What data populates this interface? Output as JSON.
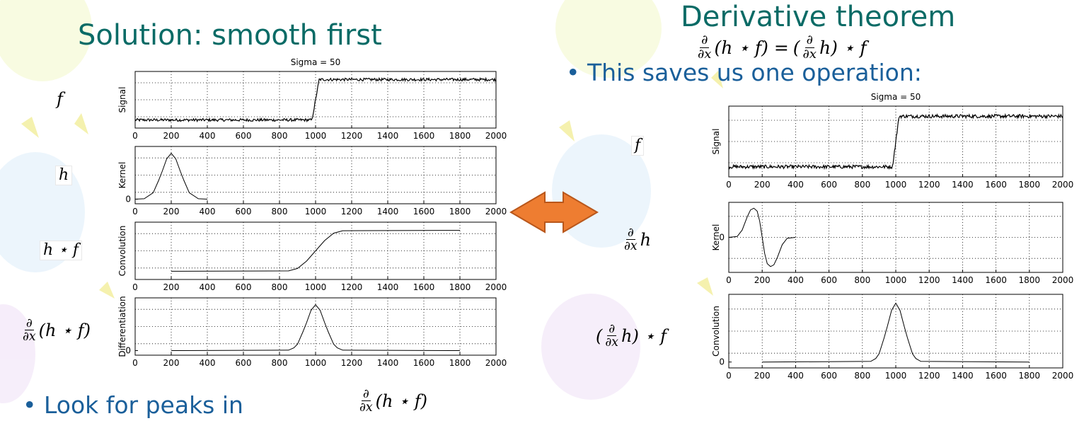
{
  "slide": {
    "left_title": "Solution:  smooth first",
    "right_title": "Derivative theorem",
    "theorem_lhs": "(h ⋆ f) =",
    "theorem_rhs": "h) ⋆ f",
    "deriv_num": "∂",
    "deriv_den": "∂x",
    "bullet_right": "• This saves us one operation:",
    "bullet_left": "• Look for peaks in",
    "left_labels": {
      "f": "f",
      "h": "h",
      "hf": "h ⋆ f",
      "dhf_tail": "(h ⋆ f)"
    },
    "right_labels": {
      "f": "f",
      "dh_tail": "h",
      "dhf_tail": "h) ⋆ f",
      "dhf_open": "("
    },
    "bottom_expr_tail": "(h ⋆ f)",
    "arrow_color": "#ee7d31",
    "title_color": "#0a6b66",
    "bullet_color": "#1a5f9a"
  },
  "chart_data": [
    {
      "type": "line",
      "group": "left",
      "suptitle": "Sigma = 50",
      "ylabel": "Signal",
      "xlim": [
        0,
        2000
      ],
      "ylim": [
        -0.2,
        1.2
      ],
      "yticks": [],
      "xticks": [
        0,
        200,
        400,
        600,
        800,
        1000,
        1200,
        1400,
        1600,
        1800,
        2000
      ],
      "x": [
        0,
        980,
        1000,
        1020,
        2000
      ],
      "y": [
        0,
        0,
        0.5,
        1,
        1
      ],
      "noisy": true
    },
    {
      "type": "line",
      "group": "left",
      "ylabel": "Kernel",
      "xlim": [
        0,
        2000
      ],
      "ylim": [
        -0.1,
        1.15
      ],
      "yticks": [
        0
      ],
      "xticks": [
        0,
        200,
        400,
        600,
        800,
        1000,
        1200,
        1400,
        1600,
        1800,
        2000
      ],
      "x": [
        0,
        50,
        100,
        130,
        150,
        175,
        200,
        225,
        250,
        270,
        300,
        350,
        400
      ],
      "y": [
        0.0,
        0.01,
        0.14,
        0.41,
        0.61,
        0.88,
        1.0,
        0.88,
        0.61,
        0.41,
        0.14,
        0.01,
        0.0
      ],
      "noisy": false
    },
    {
      "type": "line",
      "group": "left",
      "ylabel": "Convolution",
      "xlim": [
        0,
        2000
      ],
      "ylim": [
        -0.2,
        1.2
      ],
      "yticks": [],
      "xticks": [
        0,
        200,
        400,
        600,
        800,
        1000,
        1200,
        1400,
        1600,
        1800,
        2000
      ],
      "x": [
        200,
        850,
        900,
        950,
        1000,
        1050,
        1100,
        1150,
        1800
      ],
      "y": [
        0.0,
        0.01,
        0.07,
        0.25,
        0.5,
        0.75,
        0.93,
        0.99,
        1.0
      ],
      "noisy": false
    },
    {
      "type": "line",
      "group": "left",
      "ylabel": "Differentiation",
      "xlim": [
        0,
        2000
      ],
      "ylim": [
        -0.1,
        1.15
      ],
      "yticks": [
        0
      ],
      "xticks": [
        0,
        200,
        400,
        600,
        800,
        1000,
        1200,
        1400,
        1600,
        1800,
        2000
      ],
      "x": [
        200,
        850,
        880,
        900,
        930,
        950,
        975,
        1000,
        1025,
        1050,
        1070,
        1100,
        1120,
        1150,
        1800
      ],
      "y": [
        0.0,
        0.01,
        0.06,
        0.14,
        0.41,
        0.61,
        0.88,
        1.0,
        0.88,
        0.61,
        0.41,
        0.14,
        0.06,
        0.01,
        0.0
      ],
      "noisy": false
    },
    {
      "type": "line",
      "group": "right",
      "suptitle": "Sigma = 50",
      "ylabel": "Signal",
      "xlim": [
        0,
        2000
      ],
      "ylim": [
        -0.2,
        1.2
      ],
      "yticks": [],
      "xticks": [
        0,
        200,
        400,
        600,
        800,
        1000,
        1200,
        1400,
        1600,
        1800,
        2000
      ],
      "x": [
        0,
        980,
        1000,
        1020,
        2000
      ],
      "y": [
        0,
        0,
        0.5,
        1,
        1
      ],
      "noisy": true
    },
    {
      "type": "line",
      "group": "right",
      "ylabel": "Kernel",
      "xlim": [
        0,
        2000
      ],
      "ylim": [
        -1.2,
        1.2
      ],
      "yticks": [
        0
      ],
      "xticks": [
        0,
        200,
        400,
        600,
        800,
        1000,
        1200,
        1400,
        1600,
        1800,
        2000
      ],
      "x": [
        0,
        50,
        80,
        110,
        130,
        150,
        170,
        185,
        200,
        215,
        230,
        250,
        270,
        290,
        320,
        350,
        400
      ],
      "y": [
        0.0,
        0.03,
        0.25,
        0.7,
        0.94,
        1.0,
        0.9,
        0.55,
        0.0,
        -0.55,
        -0.9,
        -1.0,
        -0.94,
        -0.7,
        -0.25,
        -0.03,
        0.0
      ],
      "noisy": false
    },
    {
      "type": "line",
      "group": "right",
      "ylabel": "Convolution",
      "xlim": [
        0,
        2000
      ],
      "ylim": [
        -0.1,
        1.15
      ],
      "yticks": [
        0
      ],
      "xticks": [
        0,
        200,
        400,
        600,
        800,
        1000,
        1200,
        1400,
        1600,
        1800,
        2000
      ],
      "x": [
        200,
        850,
        880,
        900,
        930,
        950,
        975,
        1000,
        1025,
        1050,
        1070,
        1100,
        1120,
        1150,
        1800
      ],
      "y": [
        0.0,
        0.01,
        0.06,
        0.14,
        0.41,
        0.61,
        0.88,
        1.0,
        0.88,
        0.61,
        0.41,
        0.14,
        0.06,
        0.01,
        0.0
      ],
      "noisy": false
    }
  ]
}
